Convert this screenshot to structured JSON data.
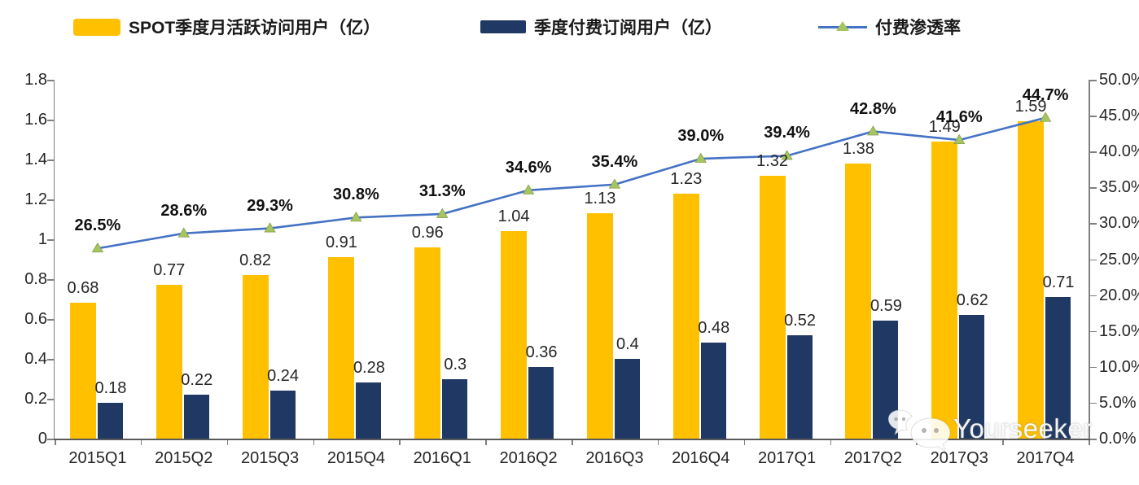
{
  "chart_data": {
    "type": "combo-bar-line",
    "categories": [
      "2015Q1",
      "2015Q2",
      "2015Q3",
      "2015Q4",
      "2016Q1",
      "2016Q2",
      "2016Q3",
      "2016Q4",
      "2017Q1",
      "2017Q2",
      "2017Q3",
      "2017Q4"
    ],
    "series": [
      {
        "name": "SPOT季度月活跃访问用户（亿）",
        "type": "bar",
        "color": "#FFC000",
        "axis": "left",
        "values": [
          0.68,
          0.77,
          0.82,
          0.91,
          0.96,
          1.04,
          1.13,
          1.23,
          1.32,
          1.38,
          1.49,
          1.59
        ],
        "labels": [
          "0.68",
          "0.77",
          "0.82",
          "0.91",
          "0.96",
          "1.04",
          "1.13",
          "1.23",
          "1.32",
          "1.38",
          "1.49",
          "1.59"
        ]
      },
      {
        "name": "季度付费订阅用户（亿）",
        "type": "bar",
        "color": "#1F3864",
        "axis": "left",
        "values": [
          0.18,
          0.22,
          0.24,
          0.28,
          0.3,
          0.36,
          0.4,
          0.48,
          0.52,
          0.59,
          0.62,
          0.71
        ],
        "labels": [
          "0.18",
          "0.22",
          "0.24",
          "0.28",
          "0.3",
          "0.36",
          "0.4",
          "0.48",
          "0.52",
          "0.59",
          "0.62",
          "0.71"
        ]
      },
      {
        "name": "付费渗透率",
        "type": "line",
        "color": "#4472C4",
        "marker": "triangle",
        "marker_color": "#A6C45F",
        "axis": "right",
        "values": [
          26.5,
          28.6,
          29.3,
          30.8,
          31.3,
          34.6,
          35.4,
          39.0,
          39.4,
          42.8,
          41.6,
          44.7
        ],
        "labels": [
          "26.5%",
          "28.6%",
          "29.3%",
          "30.8%",
          "31.3%",
          "34.6%",
          "35.4%",
          "39.0%",
          "39.4%",
          "42.8%",
          "41.6%",
          "44.7%"
        ]
      }
    ],
    "left_axis": {
      "min": 0,
      "max": 1.8,
      "step": 0.2,
      "ticks": [
        "0",
        "0.2",
        "0.4",
        "0.6",
        "0.8",
        "1",
        "1.2",
        "1.4",
        "1.6",
        "1.8"
      ],
      "tick_values": [
        0,
        0.2,
        0.4,
        0.6,
        0.8,
        1,
        1.2,
        1.4,
        1.6,
        1.8
      ]
    },
    "right_axis": {
      "min": 0,
      "max": 50,
      "step": 5,
      "ticks": [
        "0.0%",
        "5.0%",
        "10.0%",
        "15.0%",
        "20.0%",
        "25.0%",
        "30.0%",
        "35.0%",
        "40.0%",
        "45.0%",
        "50.0%"
      ],
      "tick_values": [
        0,
        5,
        10,
        15,
        20,
        25,
        30,
        35,
        40,
        45,
        50
      ]
    },
    "grid": false,
    "legend_position": "top"
  },
  "watermark": {
    "text": "Yourseeker",
    "icon": "wechat-icon"
  }
}
